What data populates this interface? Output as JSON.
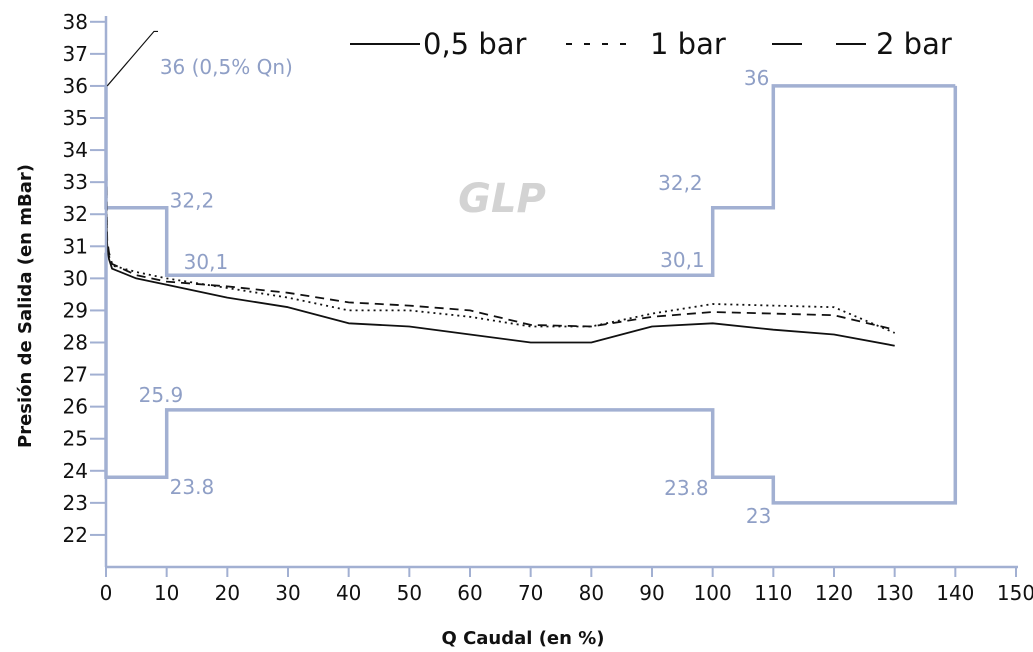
{
  "chart_data": {
    "type": "line",
    "title": "",
    "watermark": "GLP",
    "xlabel": "Q Caudal (en %)",
    "ylabel": "Presión de Salida (en mBar)",
    "xlim": [
      0,
      150
    ],
    "ylim": [
      21,
      38
    ],
    "x_ticks": [
      "0",
      "10",
      "20",
      "30",
      "40",
      "50",
      "60",
      "70",
      "80",
      "90",
      "100",
      "110",
      "120",
      "130",
      "140",
      "150"
    ],
    "y_ticks": [
      "22",
      "23",
      "24",
      "25",
      "26",
      "27",
      "28",
      "29",
      "30",
      "31",
      "32",
      "33",
      "34",
      "35",
      "36",
      "37",
      "38"
    ],
    "grid": false,
    "legend_position": "top-right",
    "colors": {
      "axis": "#a2b0d2",
      "envelope": "#a2b0d2",
      "annotation": "#8f9fc6",
      "series": "#111111",
      "watermark": "#d3d3d3"
    },
    "series": [
      {
        "name": "0,5 bar",
        "style": "solid",
        "x": [
          0,
          0,
          0.2,
          0.5,
          1,
          5,
          10,
          20,
          30,
          40,
          50,
          60,
          70,
          80,
          90,
          100,
          110,
          120,
          130
        ],
        "y": [
          34.8,
          32.5,
          31.0,
          30.6,
          30.3,
          30.0,
          29.8,
          29.4,
          29.1,
          28.6,
          28.5,
          28.25,
          28.0,
          28.0,
          28.5,
          28.6,
          28.4,
          28.25,
          27.9
        ]
      },
      {
        "name": "1 bar",
        "style": "dotted",
        "x": [
          0,
          0,
          0.2,
          0.5,
          1,
          5,
          10,
          20,
          30,
          40,
          50,
          60,
          70,
          80,
          90,
          100,
          110,
          120,
          130
        ],
        "y": [
          35.0,
          33.0,
          31.0,
          30.7,
          30.4,
          30.2,
          30.0,
          29.7,
          29.4,
          29.0,
          29.0,
          28.8,
          28.5,
          28.5,
          28.9,
          29.2,
          29.15,
          29.1,
          28.3
        ]
      },
      {
        "name": "2 bar",
        "style": "dashed",
        "x": [
          0,
          0,
          0.2,
          0.5,
          1,
          5,
          10,
          20,
          30,
          40,
          50,
          60,
          70,
          80,
          90,
          100,
          110,
          120,
          130
        ],
        "y": [
          35.2,
          33.5,
          31.2,
          30.8,
          30.45,
          30.1,
          29.9,
          29.75,
          29.55,
          29.25,
          29.15,
          29.0,
          28.55,
          28.5,
          28.8,
          28.95,
          28.9,
          28.85,
          28.4
        ]
      }
    ],
    "envelope_upper": {
      "x": [
        0,
        0,
        10,
        10,
        100,
        100,
        110,
        110,
        140
      ],
      "y": [
        36,
        32.2,
        32.2,
        30.1,
        30.1,
        32.2,
        32.2,
        36,
        36
      ]
    },
    "envelope_lower": {
      "x": [
        0,
        0,
        10,
        10,
        100,
        100,
        110,
        110,
        140,
        140
      ],
      "y": [
        30.8,
        23.8,
        23.8,
        25.9,
        25.9,
        23.8,
        23.8,
        23,
        23,
        36
      ]
    },
    "annotations": [
      {
        "text": "36 (0,5% Qn)",
        "x": 0.3,
        "y": 36
      },
      {
        "text": "32,2",
        "x": 10,
        "y": 32.2
      },
      {
        "text": "30,1",
        "x": 10,
        "y": 30.1
      },
      {
        "text": "25.9",
        "x": 10,
        "y": 25.9
      },
      {
        "text": "23.8",
        "x": 10,
        "y": 23.8
      },
      {
        "text": "32,2",
        "x": 100,
        "y": 32.2
      },
      {
        "text": "30,1",
        "x": 100,
        "y": 30.1
      },
      {
        "text": "23.8",
        "x": 100,
        "y": 23.8
      },
      {
        "text": "36",
        "x": 110,
        "y": 36
      },
      {
        "text": "23",
        "x": 110,
        "y": 23
      }
    ]
  }
}
